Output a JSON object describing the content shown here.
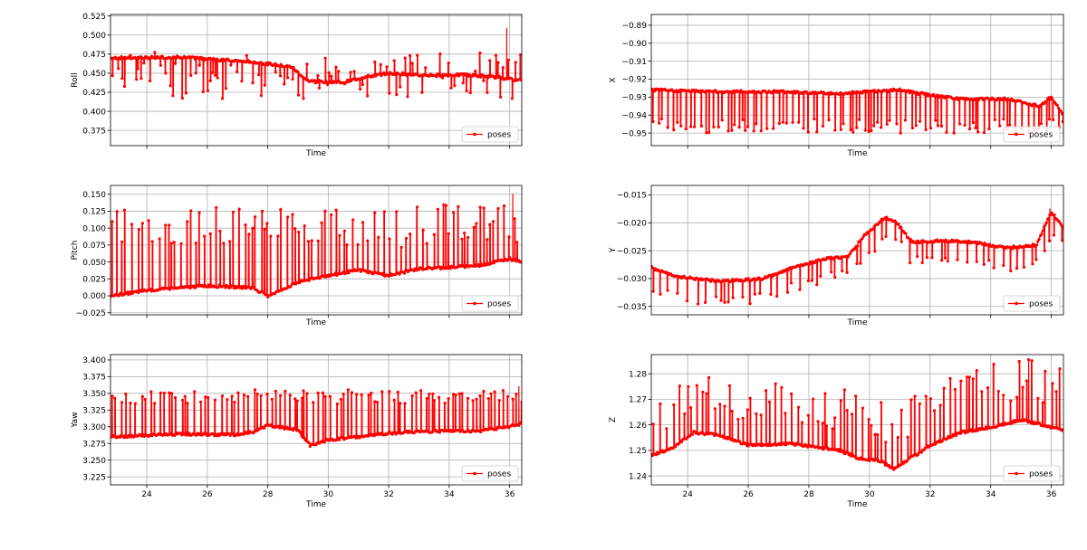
{
  "chart_data": [
    {
      "type": "line",
      "ylabel": "Roll",
      "xlabel": "Time",
      "xlim": [
        22.8,
        36.4
      ],
      "ylim": [
        0.355,
        0.527
      ],
      "xticks": [
        24,
        26,
        28,
        30,
        32,
        34,
        36
      ],
      "yticks": [
        0.375,
        0.4,
        0.425,
        0.45,
        0.475,
        0.5,
        0.525
      ],
      "ytick_labels": [
        "0.375",
        "0.400",
        "0.425",
        "0.450",
        "0.475",
        "0.500",
        "0.525"
      ],
      "show_xticklabels": false,
      "grid": true,
      "legend": "lower-right",
      "series": [
        {
          "name": "poses",
          "color": "#ff0000",
          "baseline": [
            [
              22.8,
              0.47
            ],
            [
              25.0,
              0.471
            ],
            [
              27.5,
              0.465
            ],
            [
              28.8,
              0.458
            ],
            [
              29.3,
              0.44
            ],
            [
              30.5,
              0.438
            ],
            [
              31.2,
              0.445
            ],
            [
              32.0,
              0.45
            ],
            [
              33.0,
              0.447
            ],
            [
              34.5,
              0.448
            ],
            [
              35.5,
              0.445
            ],
            [
              36.4,
              0.44
            ]
          ],
          "spike_interval": 0.12,
          "spike_low": 0.415,
          "spike_high": 0.478,
          "peak": [
            35.9,
            0.509
          ]
        }
      ]
    },
    {
      "type": "line",
      "ylabel": "Pitch",
      "xlabel": "Time",
      "xlim": [
        22.8,
        36.4
      ],
      "ylim": [
        -0.028,
        0.163
      ],
      "xticks": [
        24,
        26,
        28,
        30,
        32,
        34,
        36
      ],
      "yticks": [
        -0.025,
        0.0,
        0.025,
        0.05,
        0.075,
        0.1,
        0.125,
        0.15
      ],
      "ytick_labels": [
        "−0.025",
        "0.000",
        "0.025",
        "0.050",
        "0.075",
        "0.100",
        "0.125",
        "0.150"
      ],
      "show_xticklabels": false,
      "grid": true,
      "legend": "lower-right",
      "series": [
        {
          "name": "poses",
          "color": "#ff0000",
          "baseline": [
            [
              22.8,
              0.0
            ],
            [
              24.0,
              0.008
            ],
            [
              26.0,
              0.015
            ],
            [
              27.5,
              0.012
            ],
            [
              28.0,
              0.0
            ],
            [
              29.0,
              0.02
            ],
            [
              30.0,
              0.03
            ],
            [
              31.0,
              0.038
            ],
            [
              32.0,
              0.03
            ],
            [
              33.0,
              0.04
            ],
            [
              34.0,
              0.042
            ],
            [
              35.0,
              0.045
            ],
            [
              36.0,
              0.055
            ],
            [
              36.4,
              0.05
            ]
          ],
          "spike_interval": 0.15,
          "spike_low": 0.07,
          "spike_high": 0.14,
          "peak": [
            36.1,
            0.15
          ]
        }
      ]
    },
    {
      "type": "line",
      "ylabel": "Yaw",
      "xlabel": "Time",
      "xlim": [
        22.8,
        36.4
      ],
      "ylim": [
        3.213,
        3.408
      ],
      "xticks": [
        24,
        26,
        28,
        30,
        32,
        34,
        36
      ],
      "xtick_labels": [
        "24",
        "26",
        "28",
        "30",
        "32",
        "34",
        "36"
      ],
      "yticks": [
        3.225,
        3.25,
        3.275,
        3.3,
        3.325,
        3.35,
        3.375,
        3.4
      ],
      "ytick_labels": [
        "3.225",
        "3.250",
        "3.275",
        "3.300",
        "3.325",
        "3.350",
        "3.375",
        "3.400"
      ],
      "show_xticklabels": true,
      "grid": true,
      "legend": "lower-right",
      "series": [
        {
          "name": "poses",
          "color": "#ff0000",
          "baseline": [
            [
              22.8,
              3.285
            ],
            [
              25.0,
              3.289
            ],
            [
              27.0,
              3.288
            ],
            [
              27.5,
              3.292
            ],
            [
              28.0,
              3.302
            ],
            [
              29.0,
              3.295
            ],
            [
              29.4,
              3.272
            ],
            [
              30.0,
              3.28
            ],
            [
              31.0,
              3.285
            ],
            [
              32.0,
              3.29
            ],
            [
              33.0,
              3.293
            ],
            [
              35.0,
              3.294
            ],
            [
              36.0,
              3.3
            ],
            [
              36.4,
              3.305
            ]
          ],
          "spike_interval": 0.14,
          "spike_low": 3.335,
          "spike_high": 3.355,
          "peak": [
            36.3,
            3.36
          ]
        }
      ]
    },
    {
      "type": "line",
      "ylabel": "X",
      "xlabel": "Time",
      "xlim": [
        22.8,
        36.4
      ],
      "ylim": [
        -0.957,
        -0.884
      ],
      "xticks": [
        24,
        26,
        28,
        30,
        32,
        34,
        36
      ],
      "yticks": [
        -0.95,
        -0.94,
        -0.93,
        -0.92,
        -0.91,
        -0.9,
        -0.89
      ],
      "ytick_labels": [
        "−0.95",
        "−0.94",
        "−0.93",
        "−0.92",
        "−0.91",
        "−0.90",
        "−0.89"
      ],
      "show_xticklabels": false,
      "grid": true,
      "legend": "lower-right",
      "series": [
        {
          "name": "poses",
          "color": "#ff0000",
          "baseline": [
            [
              22.8,
              -0.926
            ],
            [
              25.0,
              -0.927
            ],
            [
              27.0,
              -0.927
            ],
            [
              29.0,
              -0.928
            ],
            [
              30.0,
              -0.927
            ],
            [
              31.0,
              -0.926
            ],
            [
              32.0,
              -0.929
            ],
            [
              33.0,
              -0.931
            ],
            [
              34.5,
              -0.931
            ],
            [
              35.6,
              -0.935
            ],
            [
              36.0,
              -0.93
            ],
            [
              36.4,
              -0.94
            ]
          ],
          "spike_interval": 0.14,
          "spike_low": -0.95,
          "spike_high": -0.942,
          "peak": [
            36.4,
            -0.953
          ]
        }
      ]
    },
    {
      "type": "line",
      "ylabel": "Y",
      "xlabel": "Time",
      "xlim": [
        22.8,
        36.4
      ],
      "ylim": [
        -0.0365,
        -0.0133
      ],
      "xticks": [
        24,
        26,
        28,
        30,
        32,
        34,
        36
      ],
      "yticks": [
        -0.035,
        -0.03,
        -0.025,
        -0.02,
        -0.015
      ],
      "ytick_labels": [
        "−0.035",
        "−0.030",
        "−0.025",
        "−0.020",
        "−0.015"
      ],
      "show_xticklabels": false,
      "grid": true,
      "legend": "lower-right",
      "series": [
        {
          "name": "poses",
          "color": "#ff0000",
          "baseline": [
            [
              22.8,
              -0.028
            ],
            [
              23.5,
              -0.0295
            ],
            [
              25.0,
              -0.0305
            ],
            [
              26.5,
              -0.03
            ],
            [
              27.5,
              -0.028
            ],
            [
              28.5,
              -0.0265
            ],
            [
              29.3,
              -0.026
            ],
            [
              29.8,
              -0.0225
            ],
            [
              30.5,
              -0.019
            ],
            [
              30.9,
              -0.02
            ],
            [
              31.4,
              -0.0235
            ],
            [
              32.5,
              -0.0232
            ],
            [
              33.5,
              -0.0235
            ],
            [
              34.5,
              -0.0245
            ],
            [
              35.5,
              -0.024
            ],
            [
              36.0,
              -0.018
            ],
            [
              36.4,
              -0.021
            ]
          ],
          "spike_interval": 0.22,
          "spike_low": -0.0045,
          "spike_high": -0.0025,
          "peak": [
            35.95,
            -0.0175
          ]
        }
      ]
    },
    {
      "type": "line",
      "ylabel": "Z",
      "xlabel": "Time",
      "xlim": [
        22.8,
        36.4
      ],
      "ylim": [
        1.2365,
        1.2875
      ],
      "xticks": [
        24,
        26,
        28,
        30,
        32,
        34,
        36
      ],
      "xtick_labels": [
        "24",
        "26",
        "28",
        "30",
        "32",
        "34",
        "36"
      ],
      "yticks": [
        1.24,
        1.25,
        1.26,
        1.27,
        1.28
      ],
      "ytick_labels": [
        "1.24",
        "1.25",
        "1.26",
        "1.27",
        "1.28"
      ],
      "show_xticklabels": true,
      "grid": true,
      "legend": "lower-right",
      "series": [
        {
          "name": "poses",
          "color": "#ff0000",
          "baseline": [
            [
              22.8,
              1.248
            ],
            [
              23.5,
              1.251
            ],
            [
              24.2,
              1.257
            ],
            [
              25.0,
              1.256
            ],
            [
              26.0,
              1.252
            ],
            [
              27.5,
              1.2525
            ],
            [
              29.0,
              1.25
            ],
            [
              29.6,
              1.247
            ],
            [
              30.3,
              1.246
            ],
            [
              30.8,
              1.243
            ],
            [
              31.5,
              1.248
            ],
            [
              32.0,
              1.252
            ],
            [
              33.0,
              1.257
            ],
            [
              34.0,
              1.259
            ],
            [
              35.0,
              1.262
            ],
            [
              36.4,
              1.258
            ]
          ],
          "spike_interval": 0.14,
          "spike_low": 0.008,
          "spike_high": 0.025,
          "peak": [
            35.25,
            1.2855
          ]
        }
      ]
    }
  ],
  "legend_label": "poses"
}
